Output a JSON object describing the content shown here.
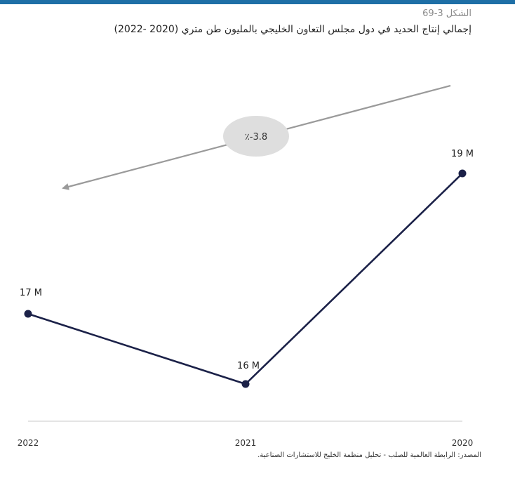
{
  "figure": {
    "label": "الشكل 3-69",
    "title": "إجمالي إنتاج الحديد في دول مجلس التعاون الخليجي بالمليون طن متري (2020 -2022)",
    "source": "المصدر: الرابطة العالمية للصلب - تحليل منظمة الخليج للاستشارات الصناعية."
  },
  "colors": {
    "accent_rule": "#1e6fa6",
    "series_line": "#1b2148",
    "trend_arrow": "#9a9a9a",
    "badge_fill": "#dedede",
    "axis_line": "#c8c8c8"
  },
  "chart_data": {
    "type": "line",
    "x": [
      "2022",
      "2021",
      "2020"
    ],
    "series": [
      {
        "values": [
          17,
          16,
          19
        ],
        "labels": [
          "17 M",
          "16 M",
          "19 M"
        ]
      }
    ],
    "trend": {
      "direction": "right-to-left",
      "label": "٪-3.8"
    },
    "grid": false,
    "legend": "none"
  }
}
